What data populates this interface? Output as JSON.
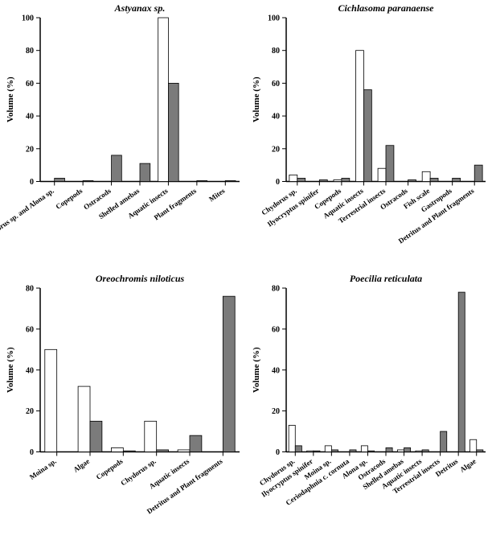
{
  "global": {
    "bg": "#ffffff",
    "axis_color": "#000000",
    "axis_width": 1.5,
    "bar_stroke": "#000000",
    "bar_stroke_width": 0.8,
    "series_colors": [
      "#ffffff",
      "#7b7b7b"
    ],
    "y_label": "Volume (%)",
    "y_label_font_size": 11,
    "y_label_font_weight": "bold",
    "tick_font_size": 10,
    "tick_font_weight": "bold",
    "title_font_size": 12,
    "title_font_style": "italic",
    "title_font_weight": "bold",
    "cat_font_size": 9,
    "cat_font_weight": "bold",
    "cat_angle": -35,
    "tick_len": 5
  },
  "panels": [
    {
      "key": "astyanax",
      "title": "Astyanax sp.",
      "ylim": [
        0,
        100
      ],
      "ytick_step": 20,
      "categories": [
        "Chydorus sp. and Alona sp.",
        "Copepods",
        "Ostracods",
        "Shelled amebas",
        "Aquatic insects",
        "Plant fragments",
        "Mites"
      ],
      "series": [
        [
          0,
          0,
          0,
          0,
          100,
          0,
          0
        ],
        [
          2,
          0.5,
          16,
          11,
          60,
          0.5,
          0.5
        ]
      ]
    },
    {
      "key": "cichlasoma",
      "title": "Cichlasoma paranaense",
      "ylim": [
        0,
        100
      ],
      "ytick_step": 20,
      "categories": [
        "Chydorus sp.",
        "Ilyocryptus spinifer",
        "Copepods",
        "Aquatic insects",
        "Terrestrial insects",
        "Ostracods",
        "Fish scale",
        "Gastropods",
        "Detritus and Plant fragments"
      ],
      "series": [
        [
          4,
          0,
          1,
          80,
          8,
          0,
          6,
          0,
          0
        ],
        [
          2,
          1,
          2,
          56,
          22,
          1,
          2,
          2,
          10
        ]
      ]
    },
    {
      "key": "oreochromis",
      "title": "Oreochromis niloticus",
      "ylim": [
        0,
        80
      ],
      "ytick_step": 20,
      "categories": [
        "Moina sp.",
        "Algae",
        "Copepods",
        "Chydorus sp.",
        "Aquatic insects",
        "Detritus and Plant fragments"
      ],
      "series": [
        [
          50,
          32,
          2,
          15,
          1,
          0
        ],
        [
          0,
          15,
          0.5,
          1,
          8,
          76
        ]
      ]
    },
    {
      "key": "poecilia",
      "title": "Poecilia reticulata",
      "ylim": [
        0,
        80
      ],
      "ytick_step": 20,
      "categories": [
        "Chydorus sp.",
        "Ilyocryptus spinifer",
        "Moina sp.",
        "Ceriodaphnia c. cornuta",
        "Alona sp.",
        "Ostracods",
        "Shelled amebas",
        "Aquatic insects",
        "Terrestrial insects",
        "Detritus",
        "Algae"
      ],
      "series": [
        [
          13,
          0.5,
          3,
          0,
          3,
          0,
          1,
          0.5,
          0,
          0,
          6
        ],
        [
          3,
          0.5,
          1,
          1,
          0.5,
          2,
          2,
          1,
          10,
          78,
          1
        ]
      ]
    }
  ]
}
